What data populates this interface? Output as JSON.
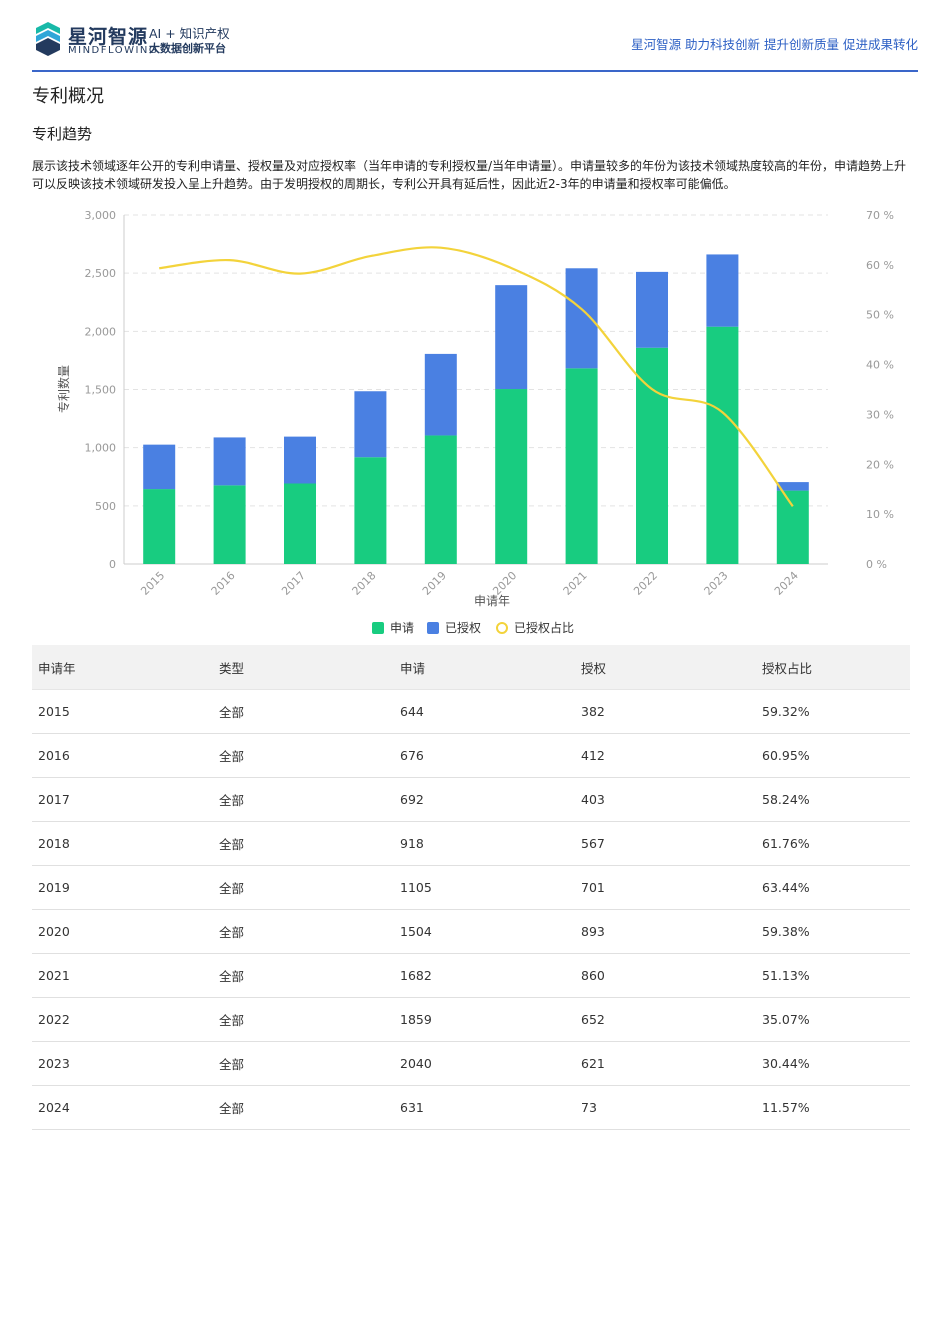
{
  "header": {
    "brand_cn": "星河智源",
    "brand_en": "MINDFLOWING",
    "tagline_1": "AI + 知识产权",
    "tagline_2": "大数据创新平台",
    "slogan": "星河智源 助力科技创新 提升创新质量 促进成果转化"
  },
  "section_title": "专利概况",
  "subsection_title": "专利趋势",
  "description": "展示该技术领域逐年公开的专利申请量、授权量及对应授权率（当年申请的专利授权量/当年申请量）。申请量较多的年份为该技术领域热度较高的年份，申请趋势上升可以反映该技术领域研发投入呈上升趋势。由于发明授权的周期长，专利公开具有延后性，因此近2-3年的申请量和授权率可能偏低。",
  "colors": {
    "application": "#18cc80",
    "granted": "#4a80e2",
    "ratio": "#f3d33b",
    "brand": "#2c5fc4"
  },
  "chart_data": {
    "type": "bar",
    "stacked": true,
    "categories": [
      "2015",
      "2016",
      "2017",
      "2018",
      "2019",
      "2020",
      "2021",
      "2022",
      "2023",
      "2024"
    ],
    "series": [
      {
        "name": "申请",
        "type": "bar",
        "axis": "left",
        "values": [
          644,
          676,
          692,
          918,
          1105,
          1504,
          1682,
          1859,
          2040,
          631
        ]
      },
      {
        "name": "已授权",
        "type": "bar",
        "axis": "left",
        "values": [
          382,
          412,
          403,
          567,
          701,
          893,
          860,
          652,
          621,
          73
        ]
      },
      {
        "name": "已授权占比",
        "type": "line",
        "axis": "right",
        "values": [
          59.32,
          60.95,
          58.24,
          61.76,
          63.44,
          59.38,
          51.13,
          35.07,
          30.44,
          11.57
        ]
      }
    ],
    "xlabel": "申请年",
    "ylabel": "专利数量",
    "ylim": [
      0,
      3000
    ],
    "y_ticks": [
      "0",
      "500",
      "1,000",
      "1,500",
      "2,000",
      "2,500",
      "3,000"
    ],
    "y2lim": [
      0,
      70
    ],
    "y2_ticks": [
      "0 %",
      "10 %",
      "20 %",
      "30 %",
      "40 %",
      "50 %",
      "60 %",
      "70 %"
    ],
    "grid": true,
    "legend": "bottom-center"
  },
  "table": {
    "headers": [
      "申请年",
      "类型",
      "申请",
      "授权",
      "授权占比"
    ],
    "rows": [
      [
        "2015",
        "全部",
        "644",
        "382",
        "59.32%"
      ],
      [
        "2016",
        "全部",
        "676",
        "412",
        "60.95%"
      ],
      [
        "2017",
        "全部",
        "692",
        "403",
        "58.24%"
      ],
      [
        "2018",
        "全部",
        "918",
        "567",
        "61.76%"
      ],
      [
        "2019",
        "全部",
        "1105",
        "701",
        "63.44%"
      ],
      [
        "2020",
        "全部",
        "1504",
        "893",
        "59.38%"
      ],
      [
        "2021",
        "全部",
        "1682",
        "860",
        "51.13%"
      ],
      [
        "2022",
        "全部",
        "1859",
        "652",
        "35.07%"
      ],
      [
        "2023",
        "全部",
        "2040",
        "621",
        "30.44%"
      ],
      [
        "2024",
        "全部",
        "631",
        "73",
        "11.57%"
      ]
    ]
  }
}
